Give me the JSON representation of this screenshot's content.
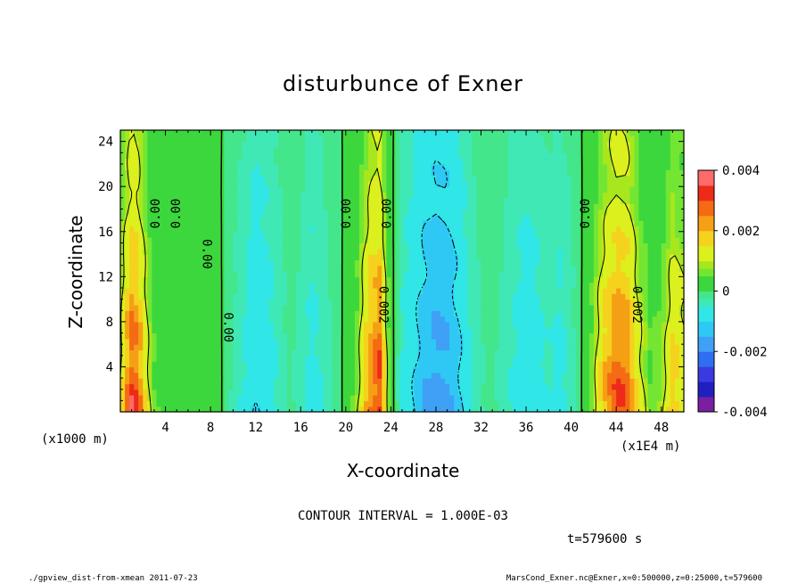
{
  "chart_data": {
    "type": "heatmap",
    "title": "disturbunce of Exner",
    "xlabel": "X-coordinate",
    "ylabel": "Z-coordinate",
    "x_unit_label": "(x1000 m)",
    "x_scale_label": "(x1E4 m)",
    "xlim": [
      0,
      50
    ],
    "ylim": [
      0,
      25
    ],
    "x_ticks": [
      "4",
      "8",
      "12",
      "16",
      "20",
      "24",
      "28",
      "32",
      "36",
      "40",
      "44",
      "48"
    ],
    "y_ticks": [
      "4",
      "8",
      "12",
      "16",
      "20",
      "24"
    ],
    "colorbar_labels": [
      "0.004",
      "0.002",
      "0",
      "-0.002",
      "-0.004"
    ],
    "colorbar_range": [
      -0.004,
      0.004
    ],
    "contour_labels": [
      "0.00",
      "0.00",
      "0.00",
      "0.00",
      "0.00",
      "0.00",
      "0.00",
      "0.002",
      "0.002"
    ],
    "contour_interval": "CONTOUR INTERVAL = 1.000E-03",
    "time": "t=579600 s",
    "columns": [
      {
        "x": 0.0,
        "v": 0.0011
      },
      {
        "x": 0.5,
        "v": 0.0024
      },
      {
        "x": 1.0,
        "v": 0.0033
      },
      {
        "x": 1.5,
        "v": 0.003
      },
      {
        "x": 2.0,
        "v": 0.0021
      },
      {
        "x": 2.5,
        "v": 0.0011
      },
      {
        "x": 3.0,
        "v": 0.0006
      },
      {
        "x": 4.0,
        "v": 0.0003
      },
      {
        "x": 5.0,
        "v": 0.0004
      },
      {
        "x": 6.0,
        "v": 0.0002
      },
      {
        "x": 7.0,
        "v": 0.0001
      },
      {
        "x": 8.0,
        "v": 0.0003
      },
      {
        "x": 9.0,
        "v": 0.0
      },
      {
        "x": 10.0,
        "v": -0.0003
      },
      {
        "x": 11.0,
        "v": -0.0006
      },
      {
        "x": 12.0,
        "v": -0.001
      },
      {
        "x": 13.0,
        "v": -0.0008
      },
      {
        "x": 14.0,
        "v": -0.0005
      },
      {
        "x": 15.0,
        "v": -0.0002
      },
      {
        "x": 16.0,
        "v": -0.0004
      },
      {
        "x": 17.0,
        "v": -0.0007
      },
      {
        "x": 18.0,
        "v": -0.0005
      },
      {
        "x": 19.0,
        "v": -0.0002
      },
      {
        "x": 20.0,
        "v": 0.0001
      },
      {
        "x": 21.0,
        "v": 0.0008
      },
      {
        "x": 22.0,
        "v": 0.0025
      },
      {
        "x": 23.0,
        "v": 0.0033
      },
      {
        "x": 23.5,
        "v": 0.0016
      },
      {
        "x": 24.0,
        "v": 0.0002
      },
      {
        "x": 25.0,
        "v": -0.0006
      },
      {
        "x": 26.0,
        "v": -0.001
      },
      {
        "x": 27.0,
        "v": -0.0015
      },
      {
        "x": 28.0,
        "v": -0.0018
      },
      {
        "x": 29.0,
        "v": -0.0017
      },
      {
        "x": 30.0,
        "v": -0.0012
      },
      {
        "x": 31.0,
        "v": -0.0006
      },
      {
        "x": 32.0,
        "v": -0.0003
      },
      {
        "x": 33.0,
        "v": -0.0002
      },
      {
        "x": 34.0,
        "v": -0.0004
      },
      {
        "x": 35.0,
        "v": -0.0006
      },
      {
        "x": 36.0,
        "v": -0.0009
      },
      {
        "x": 37.0,
        "v": -0.0007
      },
      {
        "x": 38.0,
        "v": -0.0005
      },
      {
        "x": 39.0,
        "v": -0.0007
      },
      {
        "x": 40.0,
        "v": -0.0004
      },
      {
        "x": 41.0,
        "v": 0.0
      },
      {
        "x": 42.0,
        "v": 0.0009
      },
      {
        "x": 43.0,
        "v": 0.0022
      },
      {
        "x": 44.0,
        "v": 0.0031
      },
      {
        "x": 45.0,
        "v": 0.0028
      },
      {
        "x": 46.0,
        "v": 0.0014
      },
      {
        "x": 47.0,
        "v": 0.0006
      },
      {
        "x": 48.0,
        "v": 0.0008
      },
      {
        "x": 49.0,
        "v": 0.0019
      },
      {
        "x": 50.0,
        "v": 0.0015
      }
    ],
    "colors": {
      "neg_4": "#7a1fa2",
      "neg_35": "#2020c0",
      "neg_3": "#3a3ae0",
      "neg_25": "#2f6ef0",
      "neg_2": "#3fa0f5",
      "neg_15": "#2fc8f5",
      "neg_1": "#30e6e6",
      "neg_05": "#3fe8b5",
      "zero_neg": "#44e68c",
      "zero_pos": "#3cd73c",
      "pos_05": "#73e633",
      "pos_1": "#a8e61e",
      "pos_15": "#dcf01e",
      "pos_2": "#f5d21e",
      "pos_25": "#f5a014",
      "pos_3": "#f56a14",
      "pos_35": "#ee2a18",
      "pos_4": "#ff6a6a",
      "pos_45": "#ffb0b0"
    }
  },
  "footer": {
    "left": "./gpview_dist-from-xmean  2011-07-23",
    "right": "MarsCond_Exner.nc@Exner,x=0:500000,z=0:25000,t=579600"
  }
}
